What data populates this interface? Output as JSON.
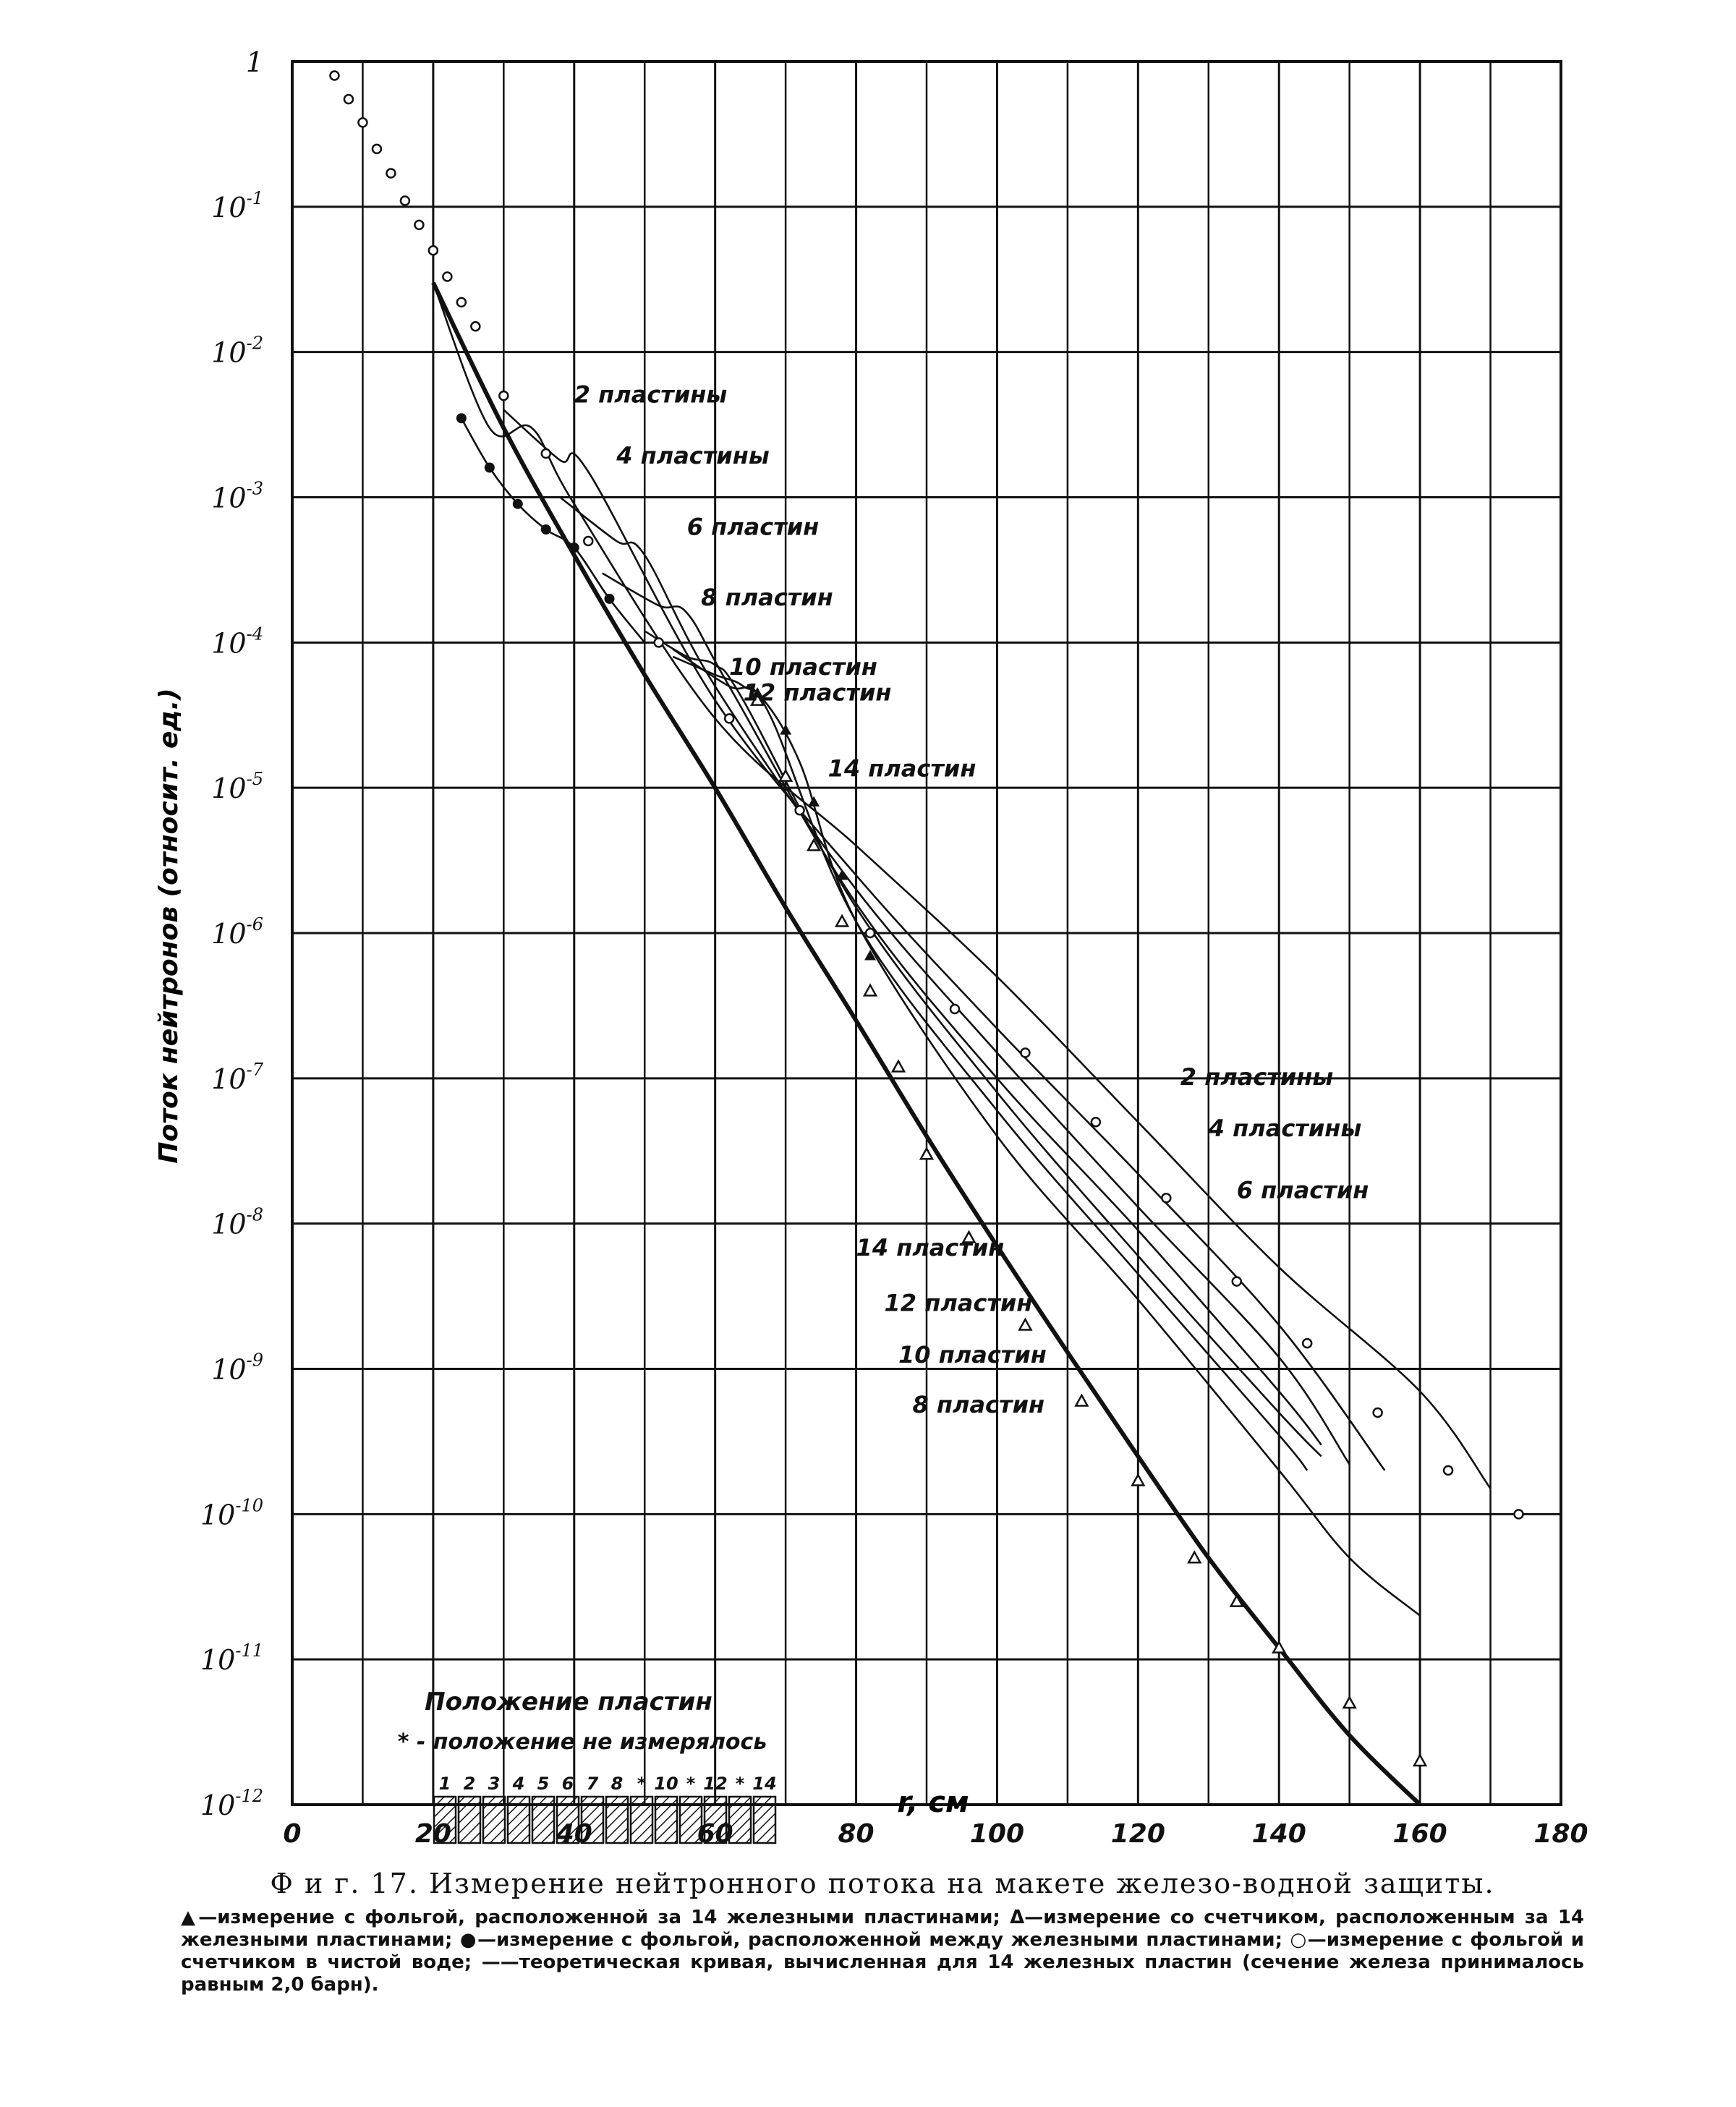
{
  "chart_data": {
    "type": "line",
    "title": "",
    "xlabel": "r, см",
    "ylabel": "Поток нейтронов (относит. ед.)",
    "xlim": [
      0,
      180
    ],
    "ylim": [
      1e-12,
      1
    ],
    "yscale": "log",
    "grid": true,
    "x_ticks": [
      0,
      20,
      40,
      60,
      80,
      100,
      120,
      140,
      160,
      180
    ],
    "x_tick_labels": [
      "0",
      "20",
      "40",
      "60",
      "80",
      "100",
      "120",
      "140",
      "160",
      "180"
    ],
    "y_ticks": [
      1,
      0.1,
      0.01,
      0.001,
      0.0001,
      1e-05,
      1e-06,
      1e-07,
      1e-08,
      1e-09,
      1e-10,
      1e-11,
      1e-12
    ],
    "y_tick_labels": [
      {
        "base": "1",
        "exp": ""
      },
      {
        "base": "10",
        "exp": "-1"
      },
      {
        "base": "10",
        "exp": "-2"
      },
      {
        "base": "10",
        "exp": "-3"
      },
      {
        "base": "10",
        "exp": "-4"
      },
      {
        "base": "10",
        "exp": "-5"
      },
      {
        "base": "10",
        "exp": "-6"
      },
      {
        "base": "10",
        "exp": "-7"
      },
      {
        "base": "10",
        "exp": "-8"
      },
      {
        "base": "10",
        "exp": "-9"
      },
      {
        "base": "10",
        "exp": "-10"
      },
      {
        "base": "10",
        "exp": "-11"
      },
      {
        "base": "10",
        "exp": "-12"
      }
    ],
    "series": [
      {
        "name": "2 пластины",
        "style": "thin",
        "x": [
          20,
          28,
          34,
          40,
          60,
          80,
          100,
          120,
          140,
          160,
          170
        ],
        "y": [
          0.03,
          0.003,
          0.003,
          0.0009,
          3e-05,
          4e-06,
          5e-07,
          5e-08,
          5e-09,
          7e-10,
          1.5e-10
        ]
      },
      {
        "name": "4 пластины",
        "style": "thin",
        "x": [
          30,
          38,
          42,
          60,
          80,
          100,
          120,
          140,
          155
        ],
        "y": [
          0.004,
          0.0018,
          0.0015,
          4e-05,
          2.5e-06,
          2.2e-07,
          2.2e-08,
          2e-09,
          2e-10
        ]
      },
      {
        "name": "6 пластин",
        "style": "thin",
        "x": [
          38,
          46,
          50,
          60,
          80,
          100,
          120,
          140,
          150
        ],
        "y": [
          0.001,
          0.0005,
          0.0004,
          5e-05,
          2e-06,
          1.5e-07,
          1.3e-08,
          1.2e-09,
          2.2e-10
        ]
      },
      {
        "name": "8 пластин",
        "style": "thin",
        "x": [
          44,
          52,
          56,
          62,
          80,
          100,
          120,
          140,
          146
        ],
        "y": [
          0.0003,
          0.00018,
          0.00016,
          5e-05,
          1.6e-06,
          1e-07,
          9e-09,
          7e-10,
          3e-10
        ]
      },
      {
        "name": "10 пластин",
        "style": "thin",
        "x": [
          50,
          56,
          60,
          64,
          80,
          100,
          120,
          140,
          146
        ],
        "y": [
          0.00012,
          8e-05,
          7e-05,
          4e-05,
          1.5e-06,
          8e-08,
          6e-09,
          5e-10,
          2.5e-10
        ]
      },
      {
        "name": "12 пластин",
        "style": "thin",
        "x": [
          54,
          60,
          64,
          68,
          80,
          100,
          120,
          140,
          144
        ],
        "y": [
          8e-05,
          6e-05,
          5e-05,
          3e-05,
          1.2e-06,
          6e-08,
          4.5e-09,
          3.5e-10,
          2e-10
        ]
      },
      {
        "name": "14 пластин",
        "style": "thin",
        "x": [
          54,
          62,
          66,
          72,
          80,
          100,
          120,
          140,
          150,
          160
        ],
        "y": [
          9e-05,
          5e-05,
          4.5e-05,
          1.5e-05,
          1.2e-06,
          4e-08,
          3e-09,
          2e-10,
          5e-11,
          2e-11
        ]
      },
      {
        "name": "",
        "style": "heavy",
        "x": [
          20,
          30,
          40,
          50,
          60,
          70,
          80,
          90,
          100,
          110,
          120,
          130,
          140,
          150,
          160
        ],
        "y": [
          0.03,
          0.003,
          0.0004,
          6e-05,
          1e-05,
          1.5e-06,
          2.5e-07,
          4e-08,
          7e-09,
          1.3e-09,
          2.5e-10,
          5e-11,
          1.2e-11,
          3e-12,
          1e-12
        ]
      },
      {
        "name": "",
        "style": "thin-lower",
        "x": [
          24,
          28,
          32,
          36,
          40,
          45,
          50
        ],
        "y": [
          0.0035,
          0.0016,
          0.0009,
          0.0006,
          0.00045,
          0.0002,
          0.0001
        ]
      }
    ],
    "markers": {
      "open_circle": {
        "x": [
          6,
          8,
          10,
          12,
          14,
          16,
          18,
          20,
          22,
          24,
          26,
          30,
          36,
          42,
          52,
          62,
          72,
          82,
          94,
          104,
          114,
          124,
          134,
          144,
          154,
          164,
          174
        ],
        "y": [
          0.8,
          0.55,
          0.38,
          0.25,
          0.17,
          0.11,
          0.075,
          0.05,
          0.033,
          0.022,
          0.015,
          0.005,
          0.002,
          0.0005,
          0.0001,
          3e-05,
          7e-06,
          1e-06,
          3e-07,
          1.5e-07,
          5e-08,
          1.5e-08,
          4e-09,
          1.5e-09,
          5e-10,
          2e-10,
          1e-10
        ]
      },
      "open_triangle": {
        "x": [
          66,
          70,
          74,
          78,
          82,
          86,
          90,
          96,
          104,
          112,
          120,
          128,
          134,
          140,
          150,
          160
        ],
        "y": [
          4e-05,
          1.2e-05,
          4e-06,
          1.2e-06,
          4e-07,
          1.2e-07,
          3e-08,
          8e-09,
          2e-09,
          6e-10,
          1.7e-10,
          5e-11,
          2.5e-11,
          1.2e-11,
          5e-12,
          2e-12
        ]
      },
      "filled_circle": {
        "x": [
          24,
          28,
          32,
          36,
          40,
          45
        ],
        "y": [
          0.0035,
          0.0016,
          0.0009,
          0.0006,
          0.00045,
          0.0002
        ]
      },
      "filled_triangle": {
        "x": [
          66,
          70,
          74,
          78,
          82
        ],
        "y": [
          4.5e-05,
          2.5e-05,
          8e-06,
          2.5e-06,
          7e-07
        ]
      }
    },
    "annotations": [
      {
        "text": "2 пластины",
        "x": 40,
        "y": 0.0045
      },
      {
        "text": "4 пластины",
        "x": 46,
        "y": 0.0017
      },
      {
        "text": "6 пластин",
        "x": 56,
        "y": 0.00055
      },
      {
        "text": "8 пластин",
        "x": 58,
        "y": 0.00018
      },
      {
        "text": "10 пластин",
        "x": 62,
        "y": 6e-05
      },
      {
        "text": "12 пластин",
        "x": 64,
        "y": 4e-05
      },
      {
        "text": "14 пластин",
        "x": 76,
        "y": 1.2e-05
      },
      {
        "text": "2 пластины",
        "x": 126,
        "y": 9e-08
      },
      {
        "text": "4 пластины",
        "x": 130,
        "y": 4e-08
      },
      {
        "text": "6 пластин",
        "x": 134,
        "y": 1.5e-08
      },
      {
        "text": "14 пластин",
        "x": 80,
        "y": 6e-09
      },
      {
        "text": "12 пластин",
        "x": 84,
        "y": 2.5e-09
      },
      {
        "text": "10 пластин",
        "x": 86,
        "y": 1.1e-09
      },
      {
        "text": "8 пластин",
        "x": 88,
        "y": 5e-10
      }
    ],
    "inset": {
      "title": "Положение пластин",
      "note": "* - положение не измерялось",
      "plate_labels": [
        "1",
        "2",
        "3",
        "4",
        "5",
        "6",
        "7",
        "8",
        "*",
        "10",
        "*",
        "12",
        "*",
        "14"
      ]
    }
  },
  "caption": {
    "title": "Ф и г. 17. Измерение нейтронного потока на макете железо-водной защиты.",
    "body": "▲—измерение с фольгой, расположенной за 14 железными пластинами; Δ—измерение со счетчиком, расположенным за 14 железными пластинами; ●—измерение с фольгой, расположенной между железными пластинами; ○—измерение с фольгой и счетчиком в чистой воде; ——теоретическая кривая, вычисленная для 14 железных пластин (сечение железа принималось равным 2,0 барн)."
  },
  "colors": {
    "ink": "#111111",
    "paper": "#ffffff"
  }
}
